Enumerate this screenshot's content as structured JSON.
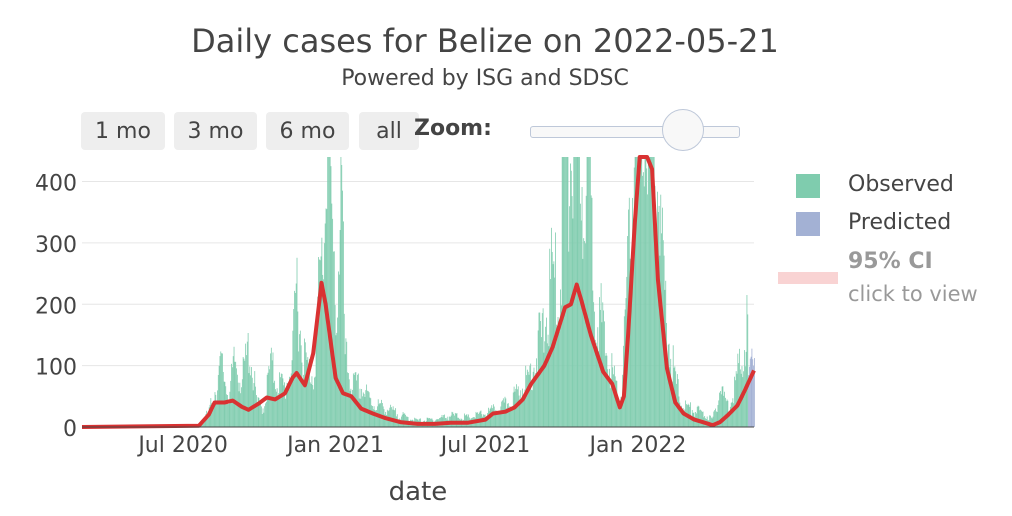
{
  "title": "Daily cases for Belize on 2022-05-21",
  "subtitle": "Powered by ISG and SDSC",
  "range_buttons": [
    "1 mo",
    "3 mo",
    "6 mo",
    "all"
  ],
  "zoom_label": "Zoom:",
  "legend": {
    "observed": "Observed",
    "predicted": "Predicted",
    "ci": "95% CI",
    "ci_hint": "click to view"
  },
  "colors": {
    "observed": "#7fccae",
    "predicted": "#a3b1d4",
    "trend": "#d93232",
    "ci": "#f9d3d3",
    "grid": "#e6e6e6"
  },
  "chart_data": {
    "type": "bar",
    "xlabel": "date",
    "ylabel": "",
    "x_range": [
      "2020-03-01",
      "2022-05-21"
    ],
    "ylim": [
      0,
      440
    ],
    "y_ticks": [
      0,
      100,
      200,
      300,
      400
    ],
    "x_ticks": [
      {
        "date": "2020-07-01",
        "label": "Jul 2020"
      },
      {
        "date": "2021-01-01",
        "label": "Jan 2021"
      },
      {
        "date": "2021-07-01",
        "label": "Jul 2021"
      },
      {
        "date": "2022-01-01",
        "label": "Jan 2022"
      }
    ],
    "grid": true,
    "legend_position": "right",
    "series": [
      {
        "name": "Observed",
        "type": "bar",
        "points": [
          [
            "2020-03-01",
            0
          ],
          [
            "2020-06-01",
            1
          ],
          [
            "2020-07-20",
            2
          ],
          [
            "2020-08-01",
            20
          ],
          [
            "2020-08-10",
            55
          ],
          [
            "2020-08-16",
            80
          ],
          [
            "2020-08-25",
            40
          ],
          [
            "2020-09-01",
            85
          ],
          [
            "2020-09-10",
            60
          ],
          [
            "2020-09-18",
            105
          ],
          [
            "2020-09-28",
            30
          ],
          [
            "2020-10-06",
            25
          ],
          [
            "2020-10-14",
            80
          ],
          [
            "2020-10-22",
            60
          ],
          [
            "2020-11-01",
            50
          ],
          [
            "2020-11-10",
            90
          ],
          [
            "2020-11-15",
            195
          ],
          [
            "2020-11-20",
            110
          ],
          [
            "2020-11-28",
            75
          ],
          [
            "2020-12-05",
            70
          ],
          [
            "2020-12-12",
            180
          ],
          [
            "2020-12-18",
            250
          ],
          [
            "2020-12-22",
            440
          ],
          [
            "2020-12-24",
            440
          ],
          [
            "2020-12-28",
            200
          ],
          [
            "2021-01-03",
            160
          ],
          [
            "2021-01-07",
            350
          ],
          [
            "2021-01-12",
            90
          ],
          [
            "2021-01-20",
            55
          ],
          [
            "2021-02-01",
            50
          ],
          [
            "2021-02-15",
            30
          ],
          [
            "2021-03-01",
            25
          ],
          [
            "2021-03-20",
            15
          ],
          [
            "2021-04-10",
            8
          ],
          [
            "2021-05-01",
            10
          ],
          [
            "2021-05-20",
            15
          ],
          [
            "2021-06-10",
            12
          ],
          [
            "2021-07-01",
            18
          ],
          [
            "2021-07-20",
            25
          ],
          [
            "2021-08-05",
            40
          ],
          [
            "2021-08-20",
            60
          ],
          [
            "2021-09-01",
            100
          ],
          [
            "2021-09-10",
            130
          ],
          [
            "2021-09-20",
            200
          ],
          [
            "2021-09-28",
            160
          ],
          [
            "2021-10-03",
            370
          ],
          [
            "2021-10-08",
            300
          ],
          [
            "2021-10-14",
            390
          ],
          [
            "2021-10-20",
            440
          ],
          [
            "2021-10-26",
            300
          ],
          [
            "2021-11-01",
            380
          ],
          [
            "2021-11-08",
            200
          ],
          [
            "2021-11-15",
            150
          ],
          [
            "2021-11-22",
            100
          ],
          [
            "2021-12-01",
            70
          ],
          [
            "2021-12-10",
            30
          ],
          [
            "2021-12-16",
            120
          ],
          [
            "2021-12-22",
            250
          ],
          [
            "2021-12-28",
            440
          ],
          [
            "2022-01-05",
            440
          ],
          [
            "2022-01-12",
            440
          ],
          [
            "2022-01-18",
            440
          ],
          [
            "2022-01-24",
            330
          ],
          [
            "2022-02-01",
            170
          ],
          [
            "2022-02-08",
            100
          ],
          [
            "2022-02-15",
            60
          ],
          [
            "2022-02-22",
            30
          ],
          [
            "2022-03-01",
            25
          ],
          [
            "2022-03-15",
            20
          ],
          [
            "2022-04-01",
            10
          ],
          [
            "2022-04-10",
            50
          ],
          [
            "2022-04-20",
            25
          ],
          [
            "2022-04-28",
            60
          ],
          [
            "2022-05-05",
            80
          ],
          [
            "2022-05-10",
            130
          ],
          [
            "2022-05-16",
            110
          ],
          [
            "2022-05-20",
            90
          ]
        ]
      },
      {
        "name": "Predicted",
        "type": "bar",
        "points": [
          [
            "2022-05-14",
            60
          ],
          [
            "2022-05-17",
            80
          ],
          [
            "2022-05-20",
            95
          ]
        ]
      },
      {
        "name": "trend",
        "type": "line",
        "points": [
          [
            "2020-03-01",
            0
          ],
          [
            "2020-07-20",
            2
          ],
          [
            "2020-08-01",
            20
          ],
          [
            "2020-08-08",
            40
          ],
          [
            "2020-08-20",
            40
          ],
          [
            "2020-08-30",
            43
          ],
          [
            "2020-09-10",
            33
          ],
          [
            "2020-09-18",
            28
          ],
          [
            "2020-09-30",
            38
          ],
          [
            "2020-10-10",
            48
          ],
          [
            "2020-10-20",
            45
          ],
          [
            "2020-11-01",
            55
          ],
          [
            "2020-11-10",
            80
          ],
          [
            "2020-11-15",
            88
          ],
          [
            "2020-11-25",
            68
          ],
          [
            "2020-12-05",
            120
          ],
          [
            "2020-12-12",
            200
          ],
          [
            "2020-12-15",
            235
          ],
          [
            "2020-12-20",
            200
          ],
          [
            "2021-01-01",
            80
          ],
          [
            "2021-01-10",
            55
          ],
          [
            "2021-01-20",
            50
          ],
          [
            "2021-02-01",
            30
          ],
          [
            "2021-02-15",
            22
          ],
          [
            "2021-03-01",
            15
          ],
          [
            "2021-03-20",
            8
          ],
          [
            "2021-04-10",
            5
          ],
          [
            "2021-05-01",
            5
          ],
          [
            "2021-05-20",
            7
          ],
          [
            "2021-06-10",
            7
          ],
          [
            "2021-07-01",
            12
          ],
          [
            "2021-07-10",
            22
          ],
          [
            "2021-07-25",
            25
          ],
          [
            "2021-08-05",
            32
          ],
          [
            "2021-08-15",
            45
          ],
          [
            "2021-08-25",
            70
          ],
          [
            "2021-09-10",
            100
          ],
          [
            "2021-09-20",
            130
          ],
          [
            "2021-10-05",
            195
          ],
          [
            "2021-10-12",
            200
          ],
          [
            "2021-10-19",
            232
          ],
          [
            "2021-10-25",
            205
          ],
          [
            "2021-11-05",
            150
          ],
          [
            "2021-11-20",
            90
          ],
          [
            "2021-12-01",
            70
          ],
          [
            "2021-12-10",
            32
          ],
          [
            "2021-12-15",
            50
          ],
          [
            "2021-12-20",
            150
          ],
          [
            "2021-12-28",
            330
          ],
          [
            "2022-01-03",
            440
          ],
          [
            "2022-01-12",
            440
          ],
          [
            "2022-01-18",
            420
          ],
          [
            "2022-01-25",
            240
          ],
          [
            "2022-02-05",
            95
          ],
          [
            "2022-02-15",
            40
          ],
          [
            "2022-02-25",
            22
          ],
          [
            "2022-03-10",
            12
          ],
          [
            "2022-03-20",
            8
          ],
          [
            "2022-04-01",
            3
          ],
          [
            "2022-04-10",
            8
          ],
          [
            "2022-04-20",
            20
          ],
          [
            "2022-05-01",
            35
          ],
          [
            "2022-05-10",
            60
          ],
          [
            "2022-05-21",
            92
          ]
        ]
      }
    ]
  }
}
